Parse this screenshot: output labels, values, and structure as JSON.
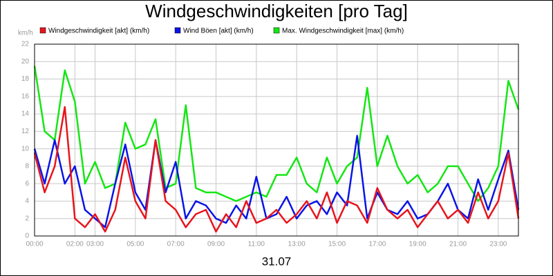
{
  "chart_data": {
    "type": "line",
    "title": "Windgeschwindigkeiten [pro Tag]",
    "y_unit": "km/h",
    "x_label": "31.07",
    "x": [
      "00:00",
      "00:30",
      "01:00",
      "01:30",
      "02:00",
      "02:30",
      "03:00",
      "03:30",
      "04:00",
      "04:30",
      "05:00",
      "05:30",
      "06:00",
      "06:30",
      "07:00",
      "07:30",
      "08:00",
      "08:30",
      "09:00",
      "09:30",
      "10:00",
      "10:30",
      "11:00",
      "11:30",
      "12:00",
      "12:30",
      "13:00",
      "13:30",
      "14:00",
      "14:30",
      "15:00",
      "15:30",
      "16:00",
      "16:30",
      "17:00",
      "17:30",
      "18:00",
      "18:30",
      "19:00",
      "19:30",
      "20:00",
      "20:30",
      "21:00",
      "21:30",
      "22:00",
      "22:30",
      "23:00",
      "23:30",
      "24:00"
    ],
    "series": [
      {
        "name": "Windgeschwindigkeit [akt] (km/h)",
        "color": "#e8141c",
        "values": [
          9.5,
          5,
          8,
          14.8,
          2,
          1,
          2.5,
          0.5,
          3,
          9,
          4,
          2,
          11,
          4,
          3,
          1,
          2.5,
          3,
          0.5,
          2.5,
          1,
          4,
          1.5,
          2,
          3,
          1.5,
          2.5,
          4,
          2,
          5,
          1.5,
          4,
          3.5,
          1.5,
          5.5,
          3,
          2,
          3,
          1,
          2.5,
          4,
          2,
          3,
          1.5,
          5,
          2,
          4,
          9.5,
          2
        ]
      },
      {
        "name": "Wind Böen [akt] (km/h)",
        "color": "#0a14e6",
        "values": [
          10,
          6,
          11,
          6,
          8,
          3,
          2,
          1,
          6,
          10.5,
          5,
          3,
          11,
          5,
          8.5,
          2,
          4,
          3.5,
          2,
          1.5,
          3.5,
          2,
          6.8,
          2,
          2.5,
          4.5,
          2,
          3.5,
          4,
          2.5,
          5,
          3.5,
          11.5,
          2,
          5,
          3,
          2.5,
          4,
          2,
          2.5,
          4,
          6,
          3,
          2,
          6.5,
          3,
          6.5,
          9.8,
          3
        ]
      },
      {
        "name": "Max. Windgeschwindigkeit [max] (km/h)",
        "color": "#14e614",
        "values": [
          19.5,
          12,
          11,
          19,
          15.4,
          6,
          8.5,
          5.5,
          6,
          13,
          10,
          10.5,
          13.4,
          5.5,
          6,
          15,
          5.5,
          5,
          5,
          4.5,
          4,
          4.5,
          5,
          4.5,
          7,
          7,
          9,
          6,
          5,
          9,
          6,
          8,
          9,
          17,
          8,
          11.5,
          8,
          6,
          7,
          5,
          6,
          8,
          8,
          6,
          4,
          5.5,
          8,
          17.8,
          14.5
        ]
      }
    ],
    "xlim": [
      "00:00",
      "24:00"
    ],
    "xticks": [
      "00:00",
      "02:00",
      "03:00",
      "05:00",
      "07:00",
      "09:00",
      "11:00",
      "13:00",
      "15:00",
      "17:00",
      "19:00",
      "21:00",
      "23:00"
    ],
    "ylim": [
      0,
      22
    ],
    "yticks": [
      0,
      2,
      4,
      6,
      8,
      10,
      12,
      14,
      16,
      18,
      20,
      22
    ],
    "grid": true
  }
}
